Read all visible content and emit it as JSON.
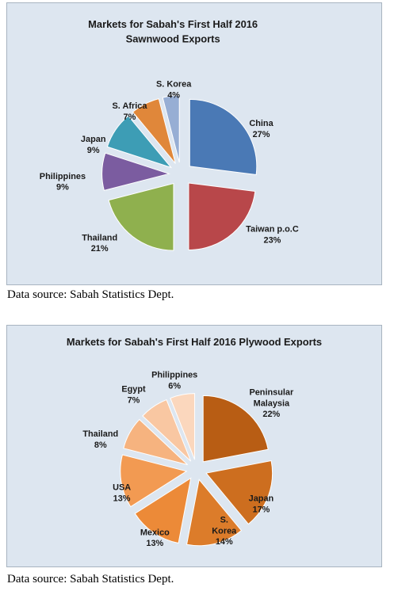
{
  "chart_data": [
    {
      "type": "pie",
      "title": "Markets for Sabah's First Half 2016",
      "subtitle": "Sawnwood Exports",
      "categories": [
        "China",
        "Taiwan p.o.C",
        "Thailand",
        "Philippines",
        "Japan",
        "S. Africa",
        "S. Korea"
      ],
      "values": [
        27,
        23,
        21,
        9,
        9,
        7,
        4
      ],
      "labels": [
        "27%",
        "23%",
        "21%",
        "9%",
        "9%",
        "7%",
        "4%"
      ],
      "colors": [
        "#4a79b5",
        "#b8474a",
        "#8fb04e",
        "#7b5ca0",
        "#3d9db5",
        "#e0873a",
        "#97aed4"
      ]
    },
    {
      "type": "pie",
      "title": "Markets for Sabah's First Half 2016 Plywood Exports",
      "categories": [
        "Peninsular Malaysia",
        "Japan",
        "S. Korea",
        "Mexico",
        "USA",
        "Thailand",
        "Egypt",
        "Philippines"
      ],
      "values": [
        22,
        17,
        14,
        13,
        13,
        8,
        7,
        6
      ],
      "labels": [
        "22%",
        "17%",
        "14%",
        "13%",
        "13%",
        "8%",
        "7%",
        "6%"
      ],
      "colors": [
        "#b85d14",
        "#cd6e1f",
        "#dc7c2a",
        "#ec8a38",
        "#f29a52",
        "#f6b37f",
        "#f9c7a2",
        "#fbd7bd"
      ]
    }
  ],
  "source1": "Data source: Sabah Statistics Dept.",
  "source2": "Data source: Sabah Statistics Dept."
}
